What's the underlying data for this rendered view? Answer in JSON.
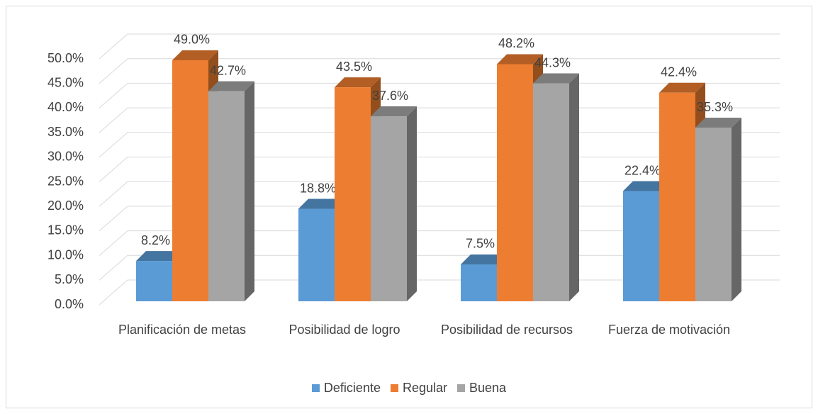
{
  "chart_data": {
    "type": "bar3d",
    "categories": [
      "Planificación de metas",
      "Posibilidad de logro",
      "Posibilidad de recursos",
      "Fuerza de motivación"
    ],
    "series": [
      {
        "name": "Deficiente",
        "color": "#5b9bd5",
        "values": [
          8.2,
          18.8,
          7.5,
          22.4
        ],
        "value_labels": [
          "8.2%",
          "18.8%",
          "7.5%",
          "22.4%"
        ]
      },
      {
        "name": "Regular",
        "color": "#ed7d31",
        "values": [
          49.0,
          43.5,
          48.2,
          42.4
        ],
        "value_labels": [
          "49.0%",
          "43.5%",
          "48.2%",
          "42.4%"
        ]
      },
      {
        "name": "Buena",
        "color": "#a5a5a5",
        "values": [
          42.7,
          37.6,
          44.3,
          35.3
        ],
        "value_labels": [
          "42.7%",
          "37.6%",
          "44.3%",
          "35.3%"
        ]
      }
    ],
    "ylim": [
      0,
      50
    ],
    "yticks": [
      {
        "value": 0,
        "label": "0.0%"
      },
      {
        "value": 5,
        "label": "5.0%"
      },
      {
        "value": 10,
        "label": "10.0%"
      },
      {
        "value": 15,
        "label": "15.0%"
      },
      {
        "value": 20,
        "label": "20.0%"
      },
      {
        "value": 25,
        "label": "25.0%"
      },
      {
        "value": 30,
        "label": "30.0%"
      },
      {
        "value": 35,
        "label": "35.0%"
      },
      {
        "value": 40,
        "label": "40.0%"
      },
      {
        "value": 45,
        "label": "45.0%"
      },
      {
        "value": 50,
        "label": "50.0%"
      }
    ],
    "grid": true,
    "legend": "bottom"
  }
}
